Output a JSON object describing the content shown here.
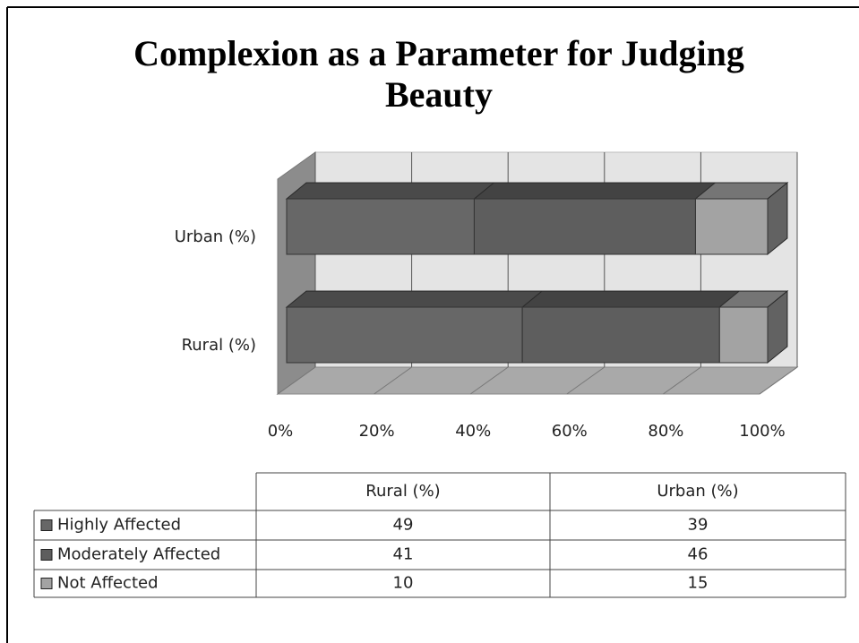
{
  "chart_data": {
    "type": "bar",
    "title": "Complexion as a Parameter for Judging Beauty",
    "categories": [
      "Rural (%)",
      "Urban (%)"
    ],
    "series": [
      {
        "name": "Highly Affected",
        "color": "#676767",
        "values": [
          49,
          39
        ]
      },
      {
        "name": "Moderately Affected",
        "color": "#5e5e5e",
        "values": [
          41,
          46
        ]
      },
      {
        "name": "Not Affected",
        "color": "#a3a3a3",
        "values": [
          10,
          15
        ]
      }
    ],
    "xlim": [
      0,
      100
    ],
    "xticks": [
      {
        "value": 0,
        "label": "0%"
      },
      {
        "value": 20,
        "label": "20%"
      },
      {
        "value": 40,
        "label": "40%"
      },
      {
        "value": 60,
        "label": "60%"
      },
      {
        "value": 80,
        "label": "80%"
      },
      {
        "value": 100,
        "label": "100%"
      }
    ],
    "grid": true
  }
}
